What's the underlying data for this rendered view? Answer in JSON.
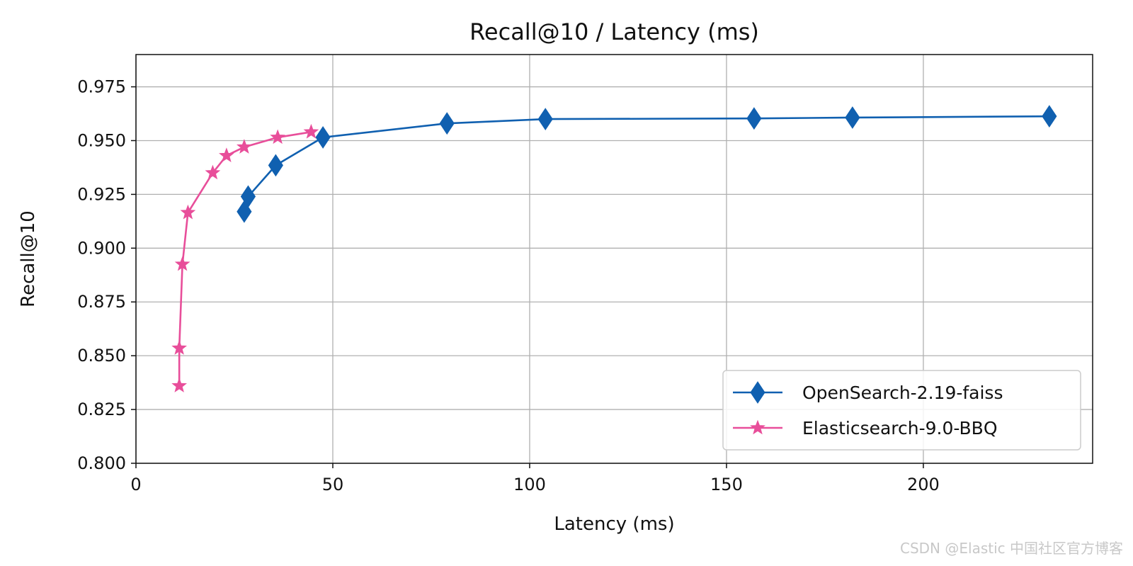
{
  "chart_data": {
    "type": "line",
    "title": "Recall@10 / Latency (ms)",
    "xlabel": "Latency (ms)",
    "ylabel": "Recall@10",
    "xlim": [
      0,
      243
    ],
    "ylim": [
      0.8,
      0.99
    ],
    "x_ticks": [
      0,
      50,
      100,
      150,
      200
    ],
    "x_tick_labels": [
      "0",
      "50",
      "100",
      "150",
      "200"
    ],
    "y_ticks": [
      0.8,
      0.825,
      0.85,
      0.875,
      0.9,
      0.925,
      0.95,
      0.975
    ],
    "y_tick_labels": [
      "0.800",
      "0.825",
      "0.850",
      "0.875",
      "0.900",
      "0.925",
      "0.950",
      "0.975"
    ],
    "grid": true,
    "legend_position": "bottom-right",
    "series": [
      {
        "name": "OpenSearch-2.19-faiss",
        "color": "#1060b0",
        "marker": "diamond",
        "x": [
          27.5,
          28.5,
          35.5,
          47.5,
          79,
          104,
          157,
          182,
          232
        ],
        "y": [
          0.917,
          0.924,
          0.9385,
          0.9515,
          0.958,
          0.96,
          0.9603,
          0.9607,
          0.9613
        ]
      },
      {
        "name": "Elasticsearch-9.0-BBQ",
        "color": "#e84e9a",
        "marker": "star",
        "x": [
          11,
          11,
          11.8,
          13.2,
          19.5,
          23,
          27.5,
          36,
          44.5
        ],
        "y": [
          0.836,
          0.8535,
          0.8925,
          0.9165,
          0.935,
          0.943,
          0.947,
          0.9515,
          0.954
        ]
      }
    ]
  },
  "watermark": "CSDN @Elastic 中国社区官方博客"
}
